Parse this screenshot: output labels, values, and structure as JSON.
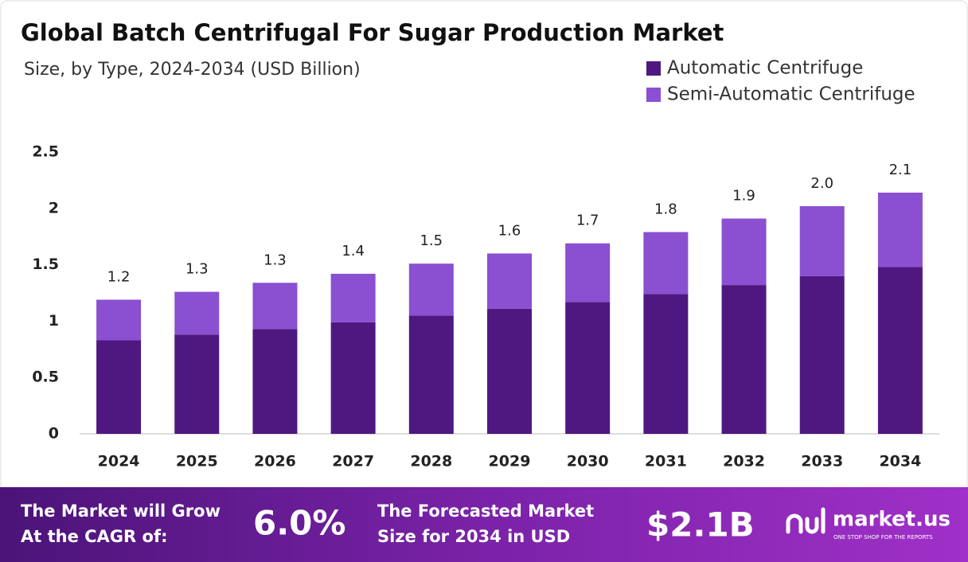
{
  "chart_data": {
    "type": "stacked_bar",
    "title": "Global Batch Centrifugal For Sugar Production Market",
    "subtitle": "Size, by Type, 2024-2034 (USD Billion)",
    "categories": [
      "2024",
      "2025",
      "2026",
      "2027",
      "2028",
      "2029",
      "2030",
      "2031",
      "2032",
      "2033",
      "2034"
    ],
    "series": [
      {
        "name": "Automatic Centrifuge",
        "color": "#4f1880",
        "values": [
          0.83,
          0.88,
          0.93,
          0.99,
          1.05,
          1.11,
          1.17,
          1.24,
          1.32,
          1.4,
          1.48
        ]
      },
      {
        "name": "Semi-Automatic Centrifuge",
        "color": "#8b4fd1",
        "values": [
          0.36,
          0.38,
          0.41,
          0.43,
          0.46,
          0.49,
          0.52,
          0.55,
          0.59,
          0.62,
          0.66
        ]
      }
    ],
    "total_labels": [
      "1.2",
      "1.3",
      "1.3",
      "1.4",
      "1.5",
      "1.6",
      "1.7",
      "1.8",
      "1.9",
      "2.0",
      "2.1"
    ],
    "ylim": [
      0,
      2.5
    ],
    "yticks": [
      0,
      0.5,
      1,
      1.5,
      2,
      2.5
    ],
    "grid": false,
    "legend": "top-right"
  },
  "footer": {
    "cagr_text": [
      "The Market will Grow",
      "At the CAGR of:"
    ],
    "cagr_value": "6.0%",
    "forecast_text": [
      "The Forecasted Market",
      "Size for 2034 in USD"
    ],
    "forecast_value": "$2.1B",
    "brand": "market.us",
    "tagline": "ONE STOP SHOP FOR THE REPORTS"
  }
}
